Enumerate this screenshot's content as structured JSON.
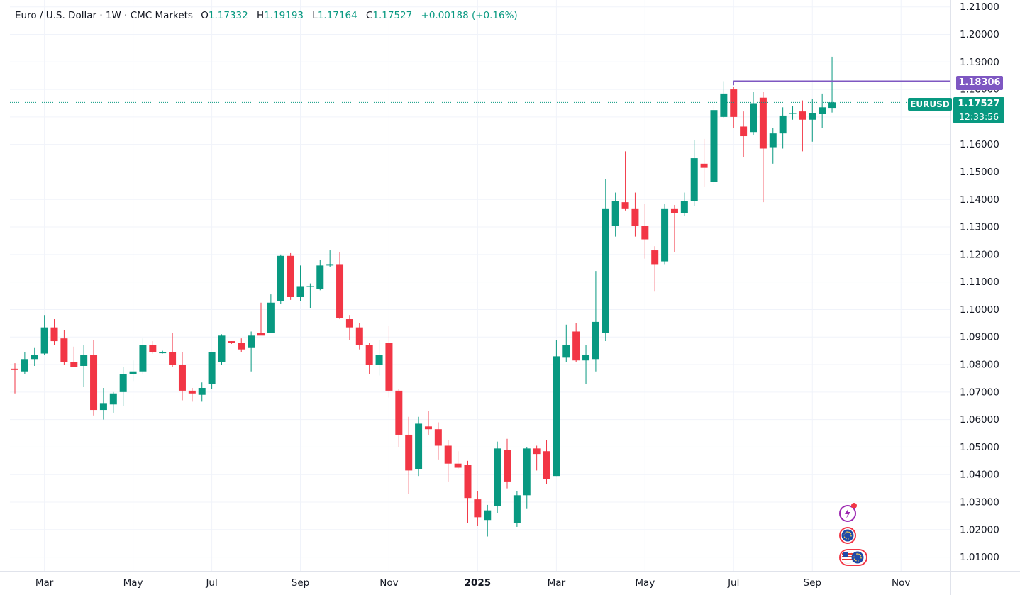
{
  "legend": {
    "symbol_line": "Euro / U.S. Dollar · 1W · CMC Markets",
    "o_label": "O",
    "o_value": "1.17332",
    "h_label": "H",
    "h_value": "1.19193",
    "l_label": "L",
    "l_value": "1.17164",
    "c_label": "C",
    "c_value": "1.17527",
    "change": "+0.00188 (+0.16%)"
  },
  "price_line": {
    "label": "1.18306",
    "value": 1.18306,
    "start_week": 73,
    "color": "#7e57c2"
  },
  "last_price": {
    "symbol": "EURUSD",
    "value_label": "1.17527",
    "value": 1.17527,
    "countdown": "12:33:56",
    "color": "#089981"
  },
  "colors": {
    "up": "#089981",
    "down": "#f23645",
    "grid": "#f0f3fa",
    "axis_text": "#131722"
  },
  "icons": [
    "lightning-event-icon",
    "eu-flag-icon",
    "us-eu-flags-icon"
  ],
  "chart_data": {
    "type": "candlestick",
    "title": "Euro / U.S. Dollar · 1W · CMC Markets",
    "y_axis_ticks": [
      "1.01000",
      "1.02000",
      "1.03000",
      "1.04000",
      "1.05000",
      "1.06000",
      "1.07000",
      "1.08000",
      "1.09000",
      "1.10000",
      "1.11000",
      "1.12000",
      "1.13000",
      "1.14000",
      "1.15000",
      "1.16000",
      "1.17000",
      "1.18000",
      "1.19000",
      "1.20000",
      "1.21000"
    ],
    "ylim": [
      1.005,
      1.2125
    ],
    "x_axis_ticks": [
      {
        "label": "Mar",
        "week": 3,
        "bold": false
      },
      {
        "label": "May",
        "week": 12,
        "bold": false
      },
      {
        "label": "Jul",
        "week": 20,
        "bold": false
      },
      {
        "label": "Sep",
        "week": 29,
        "bold": false
      },
      {
        "label": "Nov",
        "week": 38,
        "bold": false
      },
      {
        "label": "2025",
        "week": 47,
        "bold": true
      },
      {
        "label": "Mar",
        "week": 55,
        "bold": false
      },
      {
        "label": "May",
        "week": 64,
        "bold": false
      },
      {
        "label": "Jul",
        "week": 73,
        "bold": false
      },
      {
        "label": "Sep",
        "week": 81,
        "bold": false
      },
      {
        "label": "Nov",
        "week": 90,
        "bold": false
      }
    ],
    "candles": [
      {
        "o": 1.0785,
        "h": 1.0805,
        "l": 1.0695,
        "c": 1.078
      },
      {
        "o": 1.0775,
        "h": 1.0845,
        "l": 1.0765,
        "c": 1.082
      },
      {
        "o": 1.082,
        "h": 1.086,
        "l": 1.0795,
        "c": 1.0835
      },
      {
        "o": 1.084,
        "h": 1.098,
        "l": 1.0835,
        "c": 1.0935
      },
      {
        "o": 1.0935,
        "h": 1.0965,
        "l": 1.087,
        "c": 1.0885
      },
      {
        "o": 1.0895,
        "h": 1.0925,
        "l": 1.08,
        "c": 1.081
      },
      {
        "o": 1.081,
        "h": 1.0865,
        "l": 1.0795,
        "c": 1.079
      },
      {
        "o": 1.0795,
        "h": 1.087,
        "l": 1.072,
        "c": 1.0835
      },
      {
        "o": 1.0835,
        "h": 1.089,
        "l": 1.0615,
        "c": 1.0635
      },
      {
        "o": 1.0635,
        "h": 1.0715,
        "l": 1.06,
        "c": 1.066
      },
      {
        "o": 1.0655,
        "h": 1.07,
        "l": 1.0625,
        "c": 1.0695
      },
      {
        "o": 1.07,
        "h": 1.079,
        "l": 1.065,
        "c": 1.0765
      },
      {
        "o": 1.0765,
        "h": 1.0815,
        "l": 1.074,
        "c": 1.0775
      },
      {
        "o": 1.0775,
        "h": 1.0895,
        "l": 1.0765,
        "c": 1.087
      },
      {
        "o": 1.087,
        "h": 1.0885,
        "l": 1.084,
        "c": 1.0845
      },
      {
        "o": 1.0845,
        "h": 1.085,
        "l": 1.084,
        "c": 1.0845
      },
      {
        "o": 1.0845,
        "h": 1.0915,
        "l": 1.079,
        "c": 1.08
      },
      {
        "o": 1.08,
        "h": 1.0845,
        "l": 1.067,
        "c": 1.0705
      },
      {
        "o": 1.0705,
        "h": 1.0715,
        "l": 1.0665,
        "c": 1.0695
      },
      {
        "o": 1.069,
        "h": 1.0735,
        "l": 1.0665,
        "c": 1.0715
      },
      {
        "o": 1.073,
        "h": 1.0845,
        "l": 1.071,
        "c": 1.0845
      },
      {
        "o": 1.081,
        "h": 1.091,
        "l": 1.08,
        "c": 1.0905
      },
      {
        "o": 1.0885,
        "h": 1.0885,
        "l": 1.0875,
        "c": 1.088
      },
      {
        "o": 1.088,
        "h": 1.0895,
        "l": 1.0845,
        "c": 1.0855
      },
      {
        "o": 1.086,
        "h": 1.092,
        "l": 1.0775,
        "c": 1.0905
      },
      {
        "o": 1.0915,
        "h": 1.1025,
        "l": 1.091,
        "c": 1.0905
      },
      {
        "o": 1.0915,
        "h": 1.1055,
        "l": 1.0915,
        "c": 1.1025
      },
      {
        "o": 1.103,
        "h": 1.12,
        "l": 1.102,
        "c": 1.1195
      },
      {
        "o": 1.1195,
        "h": 1.1205,
        "l": 1.1035,
        "c": 1.1045
      },
      {
        "o": 1.1045,
        "h": 1.116,
        "l": 1.103,
        "c": 1.1085
      },
      {
        "o": 1.1085,
        "h": 1.1095,
        "l": 1.1005,
        "c": 1.1085
      },
      {
        "o": 1.1075,
        "h": 1.118,
        "l": 1.107,
        "c": 1.116
      },
      {
        "o": 1.116,
        "h": 1.1215,
        "l": 1.1155,
        "c": 1.1165
      },
      {
        "o": 1.1165,
        "h": 1.121,
        "l": 1.0965,
        "c": 1.097
      },
      {
        "o": 1.0965,
        "h": 1.098,
        "l": 1.089,
        "c": 1.0935
      },
      {
        "o": 1.0935,
        "h": 1.095,
        "l": 1.0855,
        "c": 1.087
      },
      {
        "o": 1.087,
        "h": 1.088,
        "l": 1.0765,
        "c": 1.08
      },
      {
        "o": 1.08,
        "h": 1.089,
        "l": 1.076,
        "c": 1.0835
      },
      {
        "o": 1.088,
        "h": 1.094,
        "l": 1.068,
        "c": 1.0705
      },
      {
        "o": 1.0705,
        "h": 1.071,
        "l": 1.05,
        "c": 1.0545
      },
      {
        "o": 1.0545,
        "h": 1.061,
        "l": 1.033,
        "c": 1.0415
      },
      {
        "o": 1.042,
        "h": 1.061,
        "l": 1.0395,
        "c": 1.0585
      },
      {
        "o": 1.0575,
        "h": 1.063,
        "l": 1.0545,
        "c": 1.0565
      },
      {
        "o": 1.0565,
        "h": 1.059,
        "l": 1.0455,
        "c": 1.0505
      },
      {
        "o": 1.0505,
        "h": 1.0525,
        "l": 1.0375,
        "c": 1.044
      },
      {
        "o": 1.044,
        "h": 1.0485,
        "l": 1.042,
        "c": 1.0425
      },
      {
        "o": 1.0435,
        "h": 1.045,
        "l": 1.0225,
        "c": 1.0315
      },
      {
        "o": 1.031,
        "h": 1.034,
        "l": 1.0215,
        "c": 1.0245
      },
      {
        "o": 1.0235,
        "h": 1.029,
        "l": 1.0175,
        "c": 1.027
      },
      {
        "o": 1.0285,
        "h": 1.052,
        "l": 1.026,
        "c": 1.0495
      },
      {
        "o": 1.049,
        "h": 1.053,
        "l": 1.035,
        "c": 1.0375
      },
      {
        "o": 1.0225,
        "h": 1.034,
        "l": 1.021,
        "c": 1.0325
      },
      {
        "o": 1.0325,
        "h": 1.05,
        "l": 1.0275,
        "c": 1.0495
      },
      {
        "o": 1.0495,
        "h": 1.0505,
        "l": 1.0415,
        "c": 1.0475
      },
      {
        "o": 1.0485,
        "h": 1.0525,
        "l": 1.0365,
        "c": 1.0385
      },
      {
        "o": 1.0395,
        "h": 1.089,
        "l": 1.0395,
        "c": 1.083
      },
      {
        "o": 1.0825,
        "h": 1.0945,
        "l": 1.081,
        "c": 1.087
      },
      {
        "o": 1.092,
        "h": 1.095,
        "l": 1.081,
        "c": 1.0815
      },
      {
        "o": 1.0815,
        "h": 1.087,
        "l": 1.073,
        "c": 1.0835
      },
      {
        "o": 1.082,
        "h": 1.114,
        "l": 1.0775,
        "c": 1.0955
      },
      {
        "o": 1.0915,
        "h": 1.1475,
        "l": 1.0885,
        "c": 1.1365
      },
      {
        "o": 1.1305,
        "h": 1.1425,
        "l": 1.1265,
        "c": 1.1395
      },
      {
        "o": 1.139,
        "h": 1.1575,
        "l": 1.136,
        "c": 1.1365
      },
      {
        "o": 1.1365,
        "h": 1.1425,
        "l": 1.1265,
        "c": 1.1305
      },
      {
        "o": 1.1305,
        "h": 1.1385,
        "l": 1.1185,
        "c": 1.1255
      },
      {
        "o": 1.1215,
        "h": 1.123,
        "l": 1.1065,
        "c": 1.1165
      },
      {
        "o": 1.1175,
        "h": 1.1385,
        "l": 1.1165,
        "c": 1.1365
      },
      {
        "o": 1.1365,
        "h": 1.138,
        "l": 1.121,
        "c": 1.135
      },
      {
        "o": 1.135,
        "h": 1.1425,
        "l": 1.134,
        "c": 1.1395
      },
      {
        "o": 1.1395,
        "h": 1.1615,
        "l": 1.1375,
        "c": 1.155
      },
      {
        "o": 1.153,
        "h": 1.162,
        "l": 1.1445,
        "c": 1.1515
      },
      {
        "o": 1.1465,
        "h": 1.1745,
        "l": 1.145,
        "c": 1.1725
      },
      {
        "o": 1.17,
        "h": 1.183,
        "l": 1.1695,
        "c": 1.1785
      },
      {
        "o": 1.18,
        "h": 1.181,
        "l": 1.166,
        "c": 1.17
      },
      {
        "o": 1.1665,
        "h": 1.172,
        "l": 1.1555,
        "c": 1.163
      },
      {
        "o": 1.1645,
        "h": 1.179,
        "l": 1.1635,
        "c": 1.175
      },
      {
        "o": 1.177,
        "h": 1.179,
        "l": 1.139,
        "c": 1.1585
      },
      {
        "o": 1.159,
        "h": 1.166,
        "l": 1.153,
        "c": 1.164
      },
      {
        "o": 1.164,
        "h": 1.1735,
        "l": 1.1585,
        "c": 1.1705
      },
      {
        "o": 1.1715,
        "h": 1.174,
        "l": 1.169,
        "c": 1.1715
      },
      {
        "o": 1.172,
        "h": 1.176,
        "l": 1.1575,
        "c": 1.169
      },
      {
        "o": 1.169,
        "h": 1.1765,
        "l": 1.161,
        "c": 1.1715
      },
      {
        "o": 1.171,
        "h": 1.1785,
        "l": 1.166,
        "c": 1.1735
      },
      {
        "o": 1.1733,
        "h": 1.1919,
        "l": 1.1716,
        "c": 1.1753
      }
    ]
  }
}
